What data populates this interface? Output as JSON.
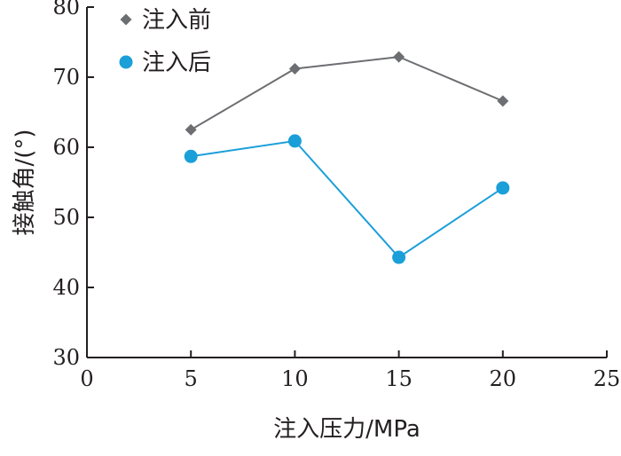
{
  "chart_data": {
    "type": "line",
    "title": "",
    "xlabel": "注入压力/MPa",
    "ylabel": "接触角/(°)",
    "xlim": [
      0,
      25
    ],
    "ylim": [
      30,
      80
    ],
    "xticks": [
      0,
      5,
      10,
      15,
      20,
      25
    ],
    "yticks": [
      30,
      40,
      50,
      60,
      70,
      80
    ],
    "grid": false,
    "legend_position": "top-left",
    "series": [
      {
        "name": "注入前",
        "marker": "diamond",
        "color": "#6d6e71",
        "x": [
          5,
          10,
          15,
          20
        ],
        "y": [
          62.5,
          71.2,
          72.9,
          66.6
        ]
      },
      {
        "name": "注入后",
        "marker": "circle",
        "color": "#1a9fd9",
        "x": [
          5,
          10,
          15,
          20
        ],
        "y": [
          58.7,
          60.9,
          44.3,
          54.2
        ]
      }
    ]
  }
}
